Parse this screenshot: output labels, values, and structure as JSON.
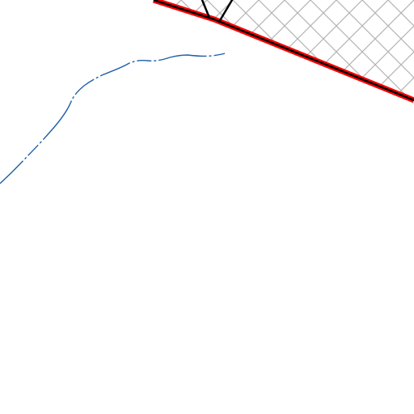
{
  "map": {
    "background_color": "#ffffff",
    "features": [
      {
        "id": "hatched-area",
        "kind": "hatched-polygon",
        "fill": "#ffffff",
        "hatch_color": "#b4b4b4"
      },
      {
        "id": "boundary-line",
        "kind": "boundary",
        "outer_color": "#ff0000",
        "inner_color": "#000000"
      },
      {
        "id": "road-spur",
        "kind": "road",
        "color": "#000000"
      },
      {
        "id": "stream",
        "kind": "waterway",
        "color": "#1f5fa8",
        "pattern": "dash-dot-intermittent"
      }
    ]
  }
}
